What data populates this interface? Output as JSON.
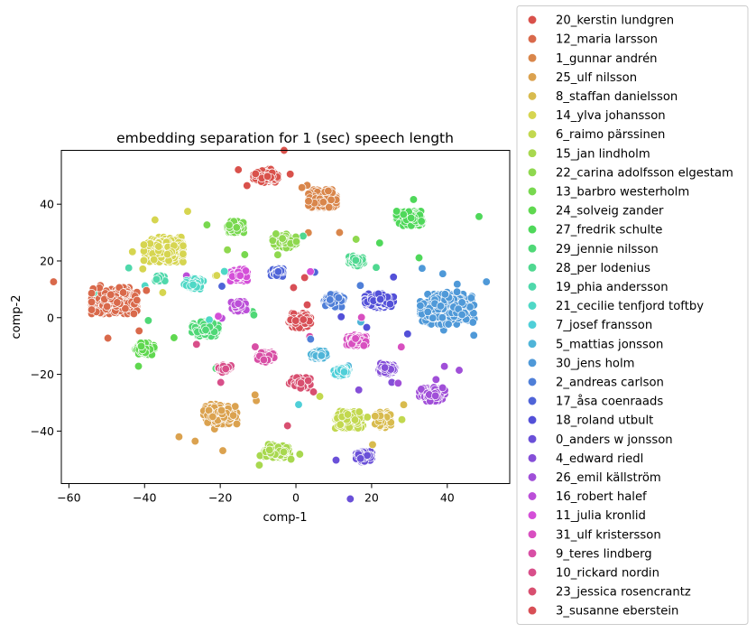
{
  "chart_data": {
    "type": "scatter",
    "title": "embedding separation for 1 (sec) speech length",
    "xlabel": "comp-1",
    "ylabel": "comp-2",
    "xlim": [
      -62,
      56.5
    ],
    "ylim": [
      -58.5,
      59
    ],
    "xticks": [
      -60,
      -40,
      -20,
      0,
      20,
      40
    ],
    "yticks": [
      -40,
      -20,
      0,
      20,
      40
    ],
    "xtick_labels": [
      "−60",
      "−40",
      "−20",
      "0",
      "20",
      "40"
    ],
    "ytick_labels": [
      "−40",
      "−20",
      "0",
      "20",
      "40"
    ],
    "grid": false,
    "legend_position": "outside-right",
    "series": [
      {
        "name": "20_kerstin lundgren",
        "color": "#d9514b",
        "center": [
          -8,
          50
        ],
        "spread": [
          2.8,
          2.0
        ],
        "n": 170
      },
      {
        "name": "12_maria larsson",
        "color": "#d9694b",
        "center": [
          -48,
          6
        ],
        "spread": [
          5.2,
          4.0
        ],
        "n": 340
      },
      {
        "name": "1_gunnar andrén",
        "color": "#d9864b",
        "center": [
          7,
          42
        ],
        "spread": [
          3.2,
          2.7
        ],
        "n": 190
      },
      {
        "name": "25_ulf nilsson",
        "color": "#dba24f",
        "center": [
          -20,
          -34
        ],
        "spread": [
          3.8,
          3.0
        ],
        "n": 290
      },
      {
        "name": "8_staffan danielsson",
        "color": "#d8bb4e",
        "center": [
          23,
          -36
        ],
        "spread": [
          1.8,
          2.4
        ],
        "n": 70
      },
      {
        "name": "14_ylva johansson",
        "color": "#d6d550",
        "center": [
          -35,
          24
        ],
        "spread": [
          4.5,
          3.8
        ],
        "n": 320
      },
      {
        "name": "6_raimo pärssinen",
        "color": "#c2d84f",
        "center": [
          14,
          -36
        ],
        "spread": [
          3.2,
          2.6
        ],
        "n": 200
      },
      {
        "name": "15_jan lindholm",
        "color": "#a8d84f",
        "center": [
          -5,
          -47
        ],
        "spread": [
          2.9,
          2.0
        ],
        "n": 200
      },
      {
        "name": "22_carina adolfsson elgestam",
        "color": "#8fd84f",
        "center": [
          -3,
          27
        ],
        "spread": [
          2.7,
          2.2
        ],
        "n": 150
      },
      {
        "name": "13_barbro westerholm",
        "color": "#78d84f",
        "center": [
          -16,
          32
        ],
        "spread": [
          1.9,
          1.7
        ],
        "n": 110
      },
      {
        "name": "24_solveig zander",
        "color": "#5fd84f",
        "center": [
          -40,
          -11
        ],
        "spread": [
          2.2,
          1.8
        ],
        "n": 130
      },
      {
        "name": "27_fredrik schulte",
        "color": "#4fd85a",
        "center": [
          30,
          35
        ],
        "spread": [
          3.0,
          2.2
        ],
        "n": 190
      },
      {
        "name": "29_jennie nilsson",
        "color": "#4fd876",
        "center": [
          -24,
          -4
        ],
        "spread": [
          3.0,
          2.2
        ],
        "n": 190
      },
      {
        "name": "28_per lodenius",
        "color": "#4fd890",
        "center": [
          16,
          20
        ],
        "spread": [
          1.7,
          1.5
        ],
        "n": 80
      },
      {
        "name": "19_phia andersson",
        "color": "#4fd8ab",
        "center": [
          -36,
          14
        ],
        "spread": [
          1.2,
          0.9
        ],
        "n": 25
      },
      {
        "name": "21_cecilie tenfjord toftby",
        "color": "#4fd8c6",
        "center": [
          -27,
          12
        ],
        "spread": [
          2.2,
          1.6
        ],
        "n": 120
      },
      {
        "name": "7_josef fransson",
        "color": "#4fcfd8",
        "center": [
          12,
          -19
        ],
        "spread": [
          1.7,
          1.3
        ],
        "n": 80
      },
      {
        "name": "5_mattias jonsson",
        "color": "#4fb4d8",
        "center": [
          6,
          -13
        ],
        "spread": [
          1.8,
          1.2
        ],
        "n": 50
      },
      {
        "name": "30_jens holm",
        "color": "#4f99d8",
        "center": [
          40,
          3
        ],
        "spread": [
          6.2,
          4.6
        ],
        "n": 440
      },
      {
        "name": "2_andreas carlson",
        "color": "#4f7fd8",
        "center": [
          10,
          6
        ],
        "spread": [
          2.3,
          1.9
        ],
        "n": 110
      },
      {
        "name": "17_åsa coenraads",
        "color": "#4f64d8",
        "center": [
          -5,
          16
        ],
        "spread": [
          1.4,
          1.2
        ],
        "n": 50
      },
      {
        "name": "18_roland utbult",
        "color": "#5350d8",
        "center": [
          22,
          6
        ],
        "spread": [
          3.3,
          2.1
        ],
        "n": 170
      },
      {
        "name": "0_anders w jonsson",
        "color": "#6a50d8",
        "center": [
          18,
          -49
        ],
        "spread": [
          1.8,
          1.6
        ],
        "n": 100
      },
      {
        "name": "4_edward riedl",
        "color": "#854fd8",
        "center": [
          24,
          -18
        ],
        "spread": [
          2.0,
          1.6
        ],
        "n": 90
      },
      {
        "name": "26_emil källström",
        "color": "#a04fd8",
        "center": [
          36,
          -27
        ],
        "spread": [
          2.9,
          2.1
        ],
        "n": 160
      },
      {
        "name": "16_robert halef",
        "color": "#bb4fd8",
        "center": [
          -15,
          4
        ],
        "spread": [
          2.0,
          1.5
        ],
        "n": 90
      },
      {
        "name": "11_julia kronlid",
        "color": "#d44fd8",
        "center": [
          -15,
          15
        ],
        "spread": [
          2.0,
          1.8
        ],
        "n": 90
      },
      {
        "name": "31_ulf kristersson",
        "color": "#d84fc0",
        "center": [
          16,
          -8
        ],
        "spread": [
          2.2,
          1.6
        ],
        "n": 120
      },
      {
        "name": "9_teres lindberg",
        "color": "#d84fa5",
        "center": [
          -8,
          -14
        ],
        "spread": [
          2.0,
          1.6
        ],
        "n": 90
      },
      {
        "name": "10_rickard nordin",
        "color": "#d84f8a",
        "center": [
          -19,
          -18
        ],
        "spread": [
          1.6,
          1.1
        ],
        "n": 45
      },
      {
        "name": "23_jessica rosencrantz",
        "color": "#d84f70",
        "center": [
          1,
          -23
        ],
        "spread": [
          2.4,
          1.6
        ],
        "n": 100
      },
      {
        "name": "3_susanne eberstein",
        "color": "#d84f56",
        "center": [
          1,
          -1
        ],
        "spread": [
          2.5,
          2.2
        ],
        "n": 150
      }
    ]
  }
}
